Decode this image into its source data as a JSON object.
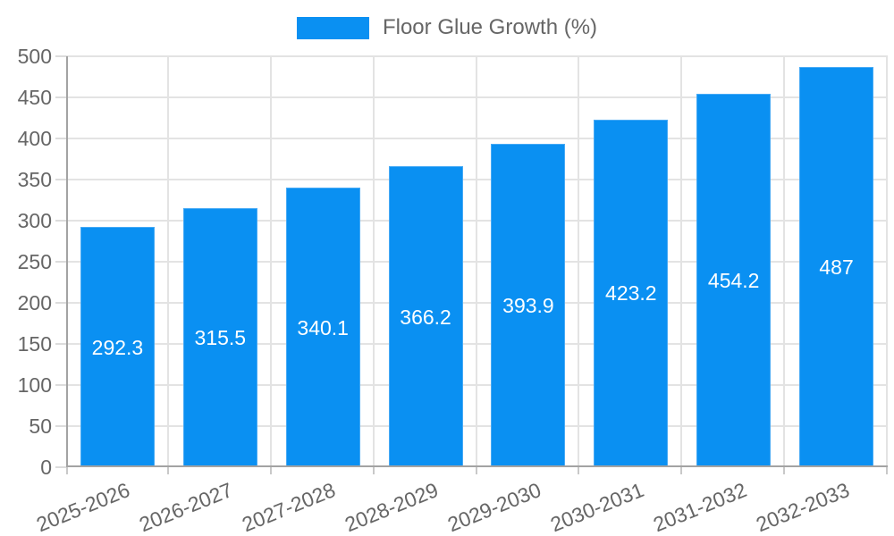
{
  "legend": {
    "items": [
      {
        "label": "Floor Glue Growth (%)",
        "color": "#0a90f2"
      }
    ]
  },
  "chart_data": {
    "type": "bar",
    "title": "Floor Glue Growth (%)",
    "categories": [
      "2025-2026",
      "2026-2027",
      "2027-2028",
      "2028-2029",
      "2029-2030",
      "2030-2031",
      "2031-2032",
      "2032-2033"
    ],
    "values": [
      292.3,
      315.5,
      340.1,
      366.2,
      393.9,
      423.2,
      454.2,
      487
    ],
    "value_labels": [
      "292.3",
      "315.5",
      "340.1",
      "366.2",
      "393.9",
      "423.2",
      "454.2",
      "487"
    ],
    "xlabel": "",
    "ylabel": "",
    "ylim": [
      0,
      500
    ],
    "ytick_step": 50,
    "ytick_labels": [
      "0",
      "50",
      "100",
      "150",
      "200",
      "250",
      "300",
      "350",
      "400",
      "450",
      "500"
    ],
    "grid": true,
    "legend_position": "top",
    "bar_color": "#0a90f2",
    "bar_border_color": "#47aaf5",
    "value_label_color": "#ffffff",
    "grid_color": "#e3e3e3",
    "axis_color": "#a3a3a3",
    "tick_label_color": "#666666"
  }
}
